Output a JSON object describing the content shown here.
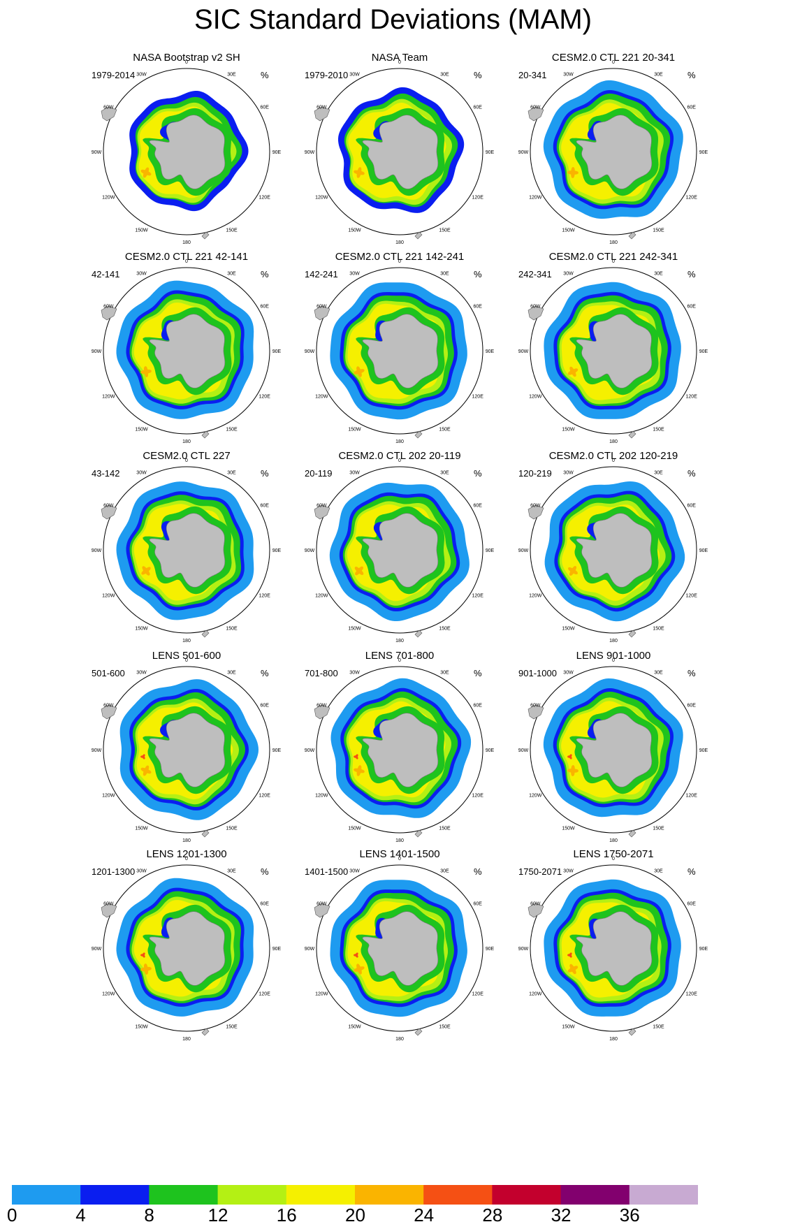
{
  "title": "SIC Standard Deviations (MAM)",
  "unit": "%",
  "longitude_labels": [
    "0",
    "30E",
    "60E",
    "90E",
    "120E",
    "150E",
    "180",
    "150W",
    "120W",
    "90W",
    "60W",
    "30W"
  ],
  "panels": [
    {
      "title": "NASA Bootstrap v2 SH",
      "period": "1979-2014",
      "variant": "obs1"
    },
    {
      "title": "NASA Team",
      "period": "1979-2010",
      "variant": "obs2"
    },
    {
      "title": "CESM2.0 CTL 221 20-341",
      "period": "20-341",
      "variant": "model"
    },
    {
      "title": "CESM2.0 CTL 221 42-141",
      "period": "42-141",
      "variant": "model"
    },
    {
      "title": "CESM2.0 CTL 221 142-241",
      "period": "142-241",
      "variant": "model"
    },
    {
      "title": "CESM2.0 CTL 221 242-341",
      "period": "242-341",
      "variant": "model"
    },
    {
      "title": "CESM2.0 CTL 227",
      "period": "43-142",
      "variant": "model"
    },
    {
      "title": "CESM2.0 CTL 202 20-119",
      "period": "20-119",
      "variant": "model"
    },
    {
      "title": "CESM2.0 CTL 202 120-219",
      "period": "120-219",
      "variant": "model"
    },
    {
      "title": "LENS 501-600",
      "period": "501-600",
      "variant": "lens"
    },
    {
      "title": "LENS 701-800",
      "period": "701-800",
      "variant": "lens"
    },
    {
      "title": "LENS 901-1000",
      "period": "901-1000",
      "variant": "lens"
    },
    {
      "title": "LENS 1201-1300",
      "period": "1201-1300",
      "variant": "lens"
    },
    {
      "title": "LENS 1401-1500",
      "period": "1401-1500",
      "variant": "lens"
    },
    {
      "title": "LENS 1750-2071",
      "period": "1750-2071",
      "variant": "lens"
    }
  ],
  "colorbar": {
    "ticks": [
      "0",
      "4",
      "8",
      "12",
      "16",
      "20",
      "24",
      "28",
      "32",
      "36"
    ],
    "colors": [
      "#1e9bf0",
      "#0a1ef0",
      "#1ec31e",
      "#b4f014",
      "#f5f000",
      "#fab400",
      "#f55014",
      "#c3002d",
      "#82006e",
      "#c8aad2"
    ]
  },
  "land_color": "#bebebe"
}
